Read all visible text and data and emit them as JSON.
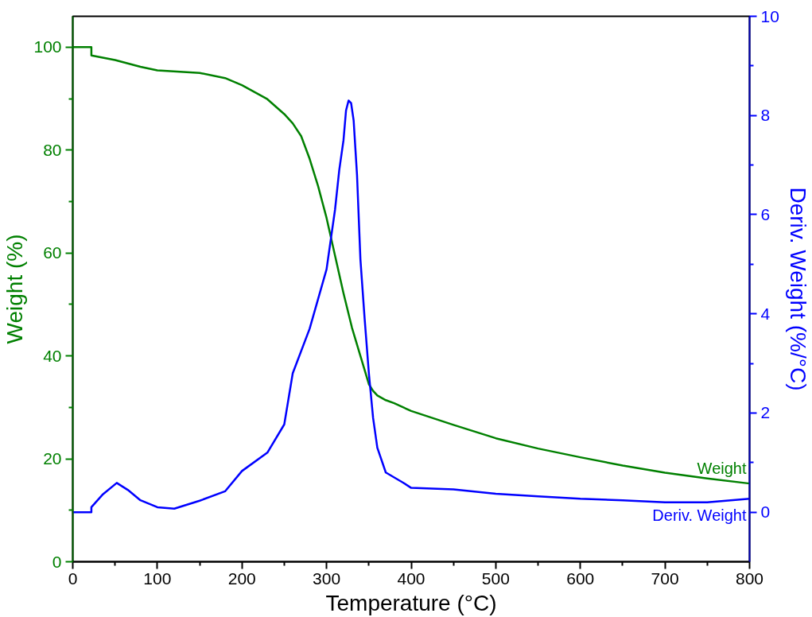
{
  "chart_data": {
    "type": "line",
    "xlabel": "Temperature (°C)",
    "ylabel": "Weight (%)",
    "y2label": "Deriv. Weight (%/°C)",
    "xlim": [
      0,
      800
    ],
    "xticks": [
      0,
      100,
      200,
      300,
      400,
      500,
      600,
      700,
      800
    ],
    "ylim": [
      0,
      106
    ],
    "yticks": [
      0,
      20,
      40,
      60,
      80,
      100
    ],
    "y2lim": [
      -1,
      10
    ],
    "y2ticks": [
      0,
      2,
      4,
      6,
      8,
      10
    ],
    "grid": false,
    "marker": "none",
    "line_style": "solid",
    "series": [
      {
        "name": "Weight",
        "color": "#008000",
        "x": [
          0,
          22,
          22,
          50,
          80,
          100,
          150,
          180,
          200,
          230,
          250,
          260,
          270,
          280,
          290,
          300,
          310,
          320,
          330,
          340,
          350,
          355,
          360,
          370,
          380,
          400,
          450,
          500,
          550,
          600,
          650,
          700,
          750,
          800
        ],
        "values": [
          100,
          100,
          98.4,
          97.5,
          96.2,
          95.5,
          95.0,
          94.0,
          92.6,
          89.9,
          87,
          85.2,
          82.7,
          78.3,
          73,
          66.8,
          59.5,
          52.2,
          45.5,
          40,
          34.5,
          33.2,
          32.3,
          31.4,
          30.8,
          29.3,
          26.6,
          24.0,
          22.0,
          20.3,
          18.7,
          17.3,
          16.2,
          15.2
        ]
      },
      {
        "name": "Deriv. Weight",
        "color": "#0000ff",
        "axis": "y2",
        "x": [
          0,
          22,
          22,
          35,
          52,
          65,
          80,
          100,
          120,
          150,
          180,
          200,
          230,
          250,
          260,
          280,
          300,
          305,
          310,
          315,
          320,
          323,
          326,
          329,
          332,
          336,
          340,
          345,
          350,
          355,
          360,
          370,
          390,
          400,
          450,
          500,
          550,
          600,
          650,
          700,
          750,
          800
        ],
        "values": [
          0,
          0,
          0.1,
          0.35,
          0.59,
          0.45,
          0.24,
          0.1,
          0.07,
          0.23,
          0.42,
          0.83,
          1.2,
          1.77,
          2.8,
          3.7,
          4.9,
          5.5,
          6.1,
          6.9,
          7.5,
          8.1,
          8.3,
          8.25,
          7.9,
          6.8,
          5.1,
          3.9,
          2.8,
          1.9,
          1.3,
          0.8,
          0.6,
          0.49,
          0.46,
          0.37,
          0.32,
          0.27,
          0.24,
          0.2,
          0.2,
          0.27
        ]
      }
    ]
  }
}
